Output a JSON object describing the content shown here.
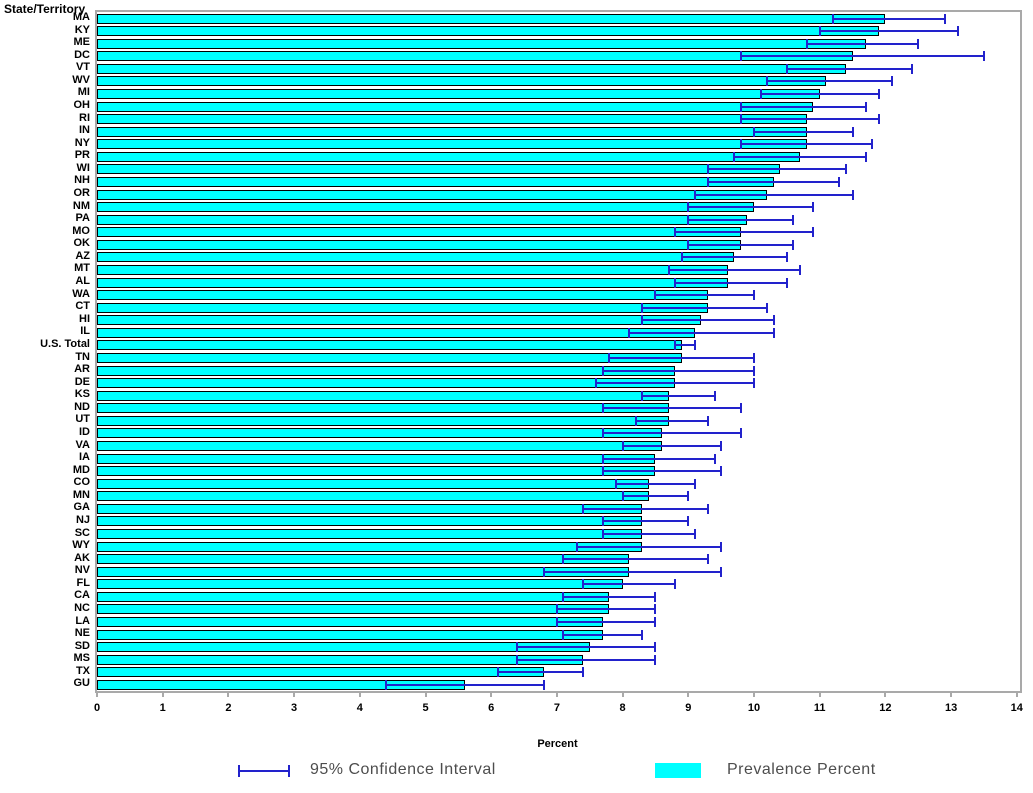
{
  "header": {
    "y_axis_title": "State/Territory"
  },
  "chart_data": {
    "type": "bar",
    "orientation": "horizontal",
    "title": "",
    "xlabel": "Percent",
    "ylabel": "State/Territory",
    "xlim": [
      0,
      14
    ],
    "x_ticks": [
      0,
      1,
      2,
      3,
      4,
      5,
      6,
      7,
      8,
      9,
      10,
      11,
      12,
      13,
      14
    ],
    "grid": false,
    "legend_position": "bottom",
    "colors": {
      "bar_fill": "#00FFFF",
      "bar_border": "#000000",
      "confidence_interval": "#2222CC",
      "axis": "#A9A9A9"
    },
    "legend": [
      {
        "label": "95% Confidence Interval",
        "marker": "error-bar"
      },
      {
        "label": "Prevalence Percent",
        "marker": "bar"
      }
    ],
    "series_name": "Prevalence Percent",
    "rows": [
      {
        "label": "MA",
        "value": 12.0,
        "ci_low": 11.2,
        "ci_high": 12.9
      },
      {
        "label": "KY",
        "value": 11.9,
        "ci_low": 11.0,
        "ci_high": 13.1
      },
      {
        "label": "ME",
        "value": 11.7,
        "ci_low": 10.8,
        "ci_high": 12.5
      },
      {
        "label": "DC",
        "value": 11.5,
        "ci_low": 9.8,
        "ci_high": 13.5
      },
      {
        "label": "VT",
        "value": 11.4,
        "ci_low": 10.5,
        "ci_high": 12.4
      },
      {
        "label": "WV",
        "value": 11.1,
        "ci_low": 10.2,
        "ci_high": 12.1
      },
      {
        "label": "MI",
        "value": 11.0,
        "ci_low": 10.1,
        "ci_high": 11.9
      },
      {
        "label": "OH",
        "value": 10.9,
        "ci_low": 9.8,
        "ci_high": 11.7
      },
      {
        "label": "RI",
        "value": 10.8,
        "ci_low": 9.8,
        "ci_high": 11.9
      },
      {
        "label": "IN",
        "value": 10.8,
        "ci_low": 10.0,
        "ci_high": 11.5
      },
      {
        "label": "NY",
        "value": 10.8,
        "ci_low": 9.8,
        "ci_high": 11.8
      },
      {
        "label": "PR",
        "value": 10.7,
        "ci_low": 9.7,
        "ci_high": 11.7
      },
      {
        "label": "WI",
        "value": 10.4,
        "ci_low": 9.3,
        "ci_high": 11.4
      },
      {
        "label": "NH",
        "value": 10.3,
        "ci_low": 9.3,
        "ci_high": 11.3
      },
      {
        "label": "OR",
        "value": 10.2,
        "ci_low": 9.1,
        "ci_high": 11.5
      },
      {
        "label": "NM",
        "value": 10.0,
        "ci_low": 9.0,
        "ci_high": 10.9
      },
      {
        "label": "PA",
        "value": 9.9,
        "ci_low": 9.0,
        "ci_high": 10.6
      },
      {
        "label": "MO",
        "value": 9.8,
        "ci_low": 8.8,
        "ci_high": 10.9
      },
      {
        "label": "OK",
        "value": 9.8,
        "ci_low": 9.0,
        "ci_high": 10.6
      },
      {
        "label": "AZ",
        "value": 9.7,
        "ci_low": 8.9,
        "ci_high": 10.5
      },
      {
        "label": "MT",
        "value": 9.6,
        "ci_low": 8.7,
        "ci_high": 10.7
      },
      {
        "label": "AL",
        "value": 9.6,
        "ci_low": 8.8,
        "ci_high": 10.5
      },
      {
        "label": "WA",
        "value": 9.3,
        "ci_low": 8.5,
        "ci_high": 10.0
      },
      {
        "label": "CT",
        "value": 9.3,
        "ci_low": 8.3,
        "ci_high": 10.2
      },
      {
        "label": "HI",
        "value": 9.2,
        "ci_low": 8.3,
        "ci_high": 10.3
      },
      {
        "label": "IL",
        "value": 9.1,
        "ci_low": 8.1,
        "ci_high": 10.3
      },
      {
        "label": "U.S. Total",
        "value": 8.9,
        "ci_low": 8.8,
        "ci_high": 9.1
      },
      {
        "label": "TN",
        "value": 8.9,
        "ci_low": 7.8,
        "ci_high": 10.0
      },
      {
        "label": "AR",
        "value": 8.8,
        "ci_low": 7.7,
        "ci_high": 10.0
      },
      {
        "label": "DE",
        "value": 8.8,
        "ci_low": 7.6,
        "ci_high": 10.0
      },
      {
        "label": "KS",
        "value": 8.7,
        "ci_low": 8.3,
        "ci_high": 9.4
      },
      {
        "label": "ND",
        "value": 8.7,
        "ci_low": 7.7,
        "ci_high": 9.8
      },
      {
        "label": "UT",
        "value": 8.7,
        "ci_low": 8.2,
        "ci_high": 9.3
      },
      {
        "label": "ID",
        "value": 8.6,
        "ci_low": 7.7,
        "ci_high": 9.8
      },
      {
        "label": "VA",
        "value": 8.6,
        "ci_low": 8.0,
        "ci_high": 9.5
      },
      {
        "label": "IA",
        "value": 8.5,
        "ci_low": 7.7,
        "ci_high": 9.4
      },
      {
        "label": "MD",
        "value": 8.5,
        "ci_low": 7.7,
        "ci_high": 9.5
      },
      {
        "label": "CO",
        "value": 8.4,
        "ci_low": 7.9,
        "ci_high": 9.1
      },
      {
        "label": "MN",
        "value": 8.4,
        "ci_low": 8.0,
        "ci_high": 9.0
      },
      {
        "label": "GA",
        "value": 8.3,
        "ci_low": 7.4,
        "ci_high": 9.3
      },
      {
        "label": "NJ",
        "value": 8.3,
        "ci_low": 7.7,
        "ci_high": 9.0
      },
      {
        "label": "SC",
        "value": 8.3,
        "ci_low": 7.7,
        "ci_high": 9.1
      },
      {
        "label": "WY",
        "value": 8.3,
        "ci_low": 7.3,
        "ci_high": 9.5
      },
      {
        "label": "AK",
        "value": 8.1,
        "ci_low": 7.1,
        "ci_high": 9.3
      },
      {
        "label": "NV",
        "value": 8.1,
        "ci_low": 6.8,
        "ci_high": 9.5
      },
      {
        "label": "FL",
        "value": 8.0,
        "ci_low": 7.4,
        "ci_high": 8.8
      },
      {
        "label": "CA",
        "value": 7.8,
        "ci_low": 7.1,
        "ci_high": 8.5
      },
      {
        "label": "NC",
        "value": 7.8,
        "ci_low": 7.0,
        "ci_high": 8.5
      },
      {
        "label": "LA",
        "value": 7.7,
        "ci_low": 7.0,
        "ci_high": 8.5
      },
      {
        "label": "NE",
        "value": 7.7,
        "ci_low": 7.1,
        "ci_high": 8.3
      },
      {
        "label": "SD",
        "value": 7.5,
        "ci_low": 6.4,
        "ci_high": 8.5
      },
      {
        "label": "MS",
        "value": 7.4,
        "ci_low": 6.4,
        "ci_high": 8.5
      },
      {
        "label": "TX",
        "value": 6.8,
        "ci_low": 6.1,
        "ci_high": 7.4
      },
      {
        "label": "GU",
        "value": 5.6,
        "ci_low": 4.4,
        "ci_high": 6.8
      }
    ]
  }
}
